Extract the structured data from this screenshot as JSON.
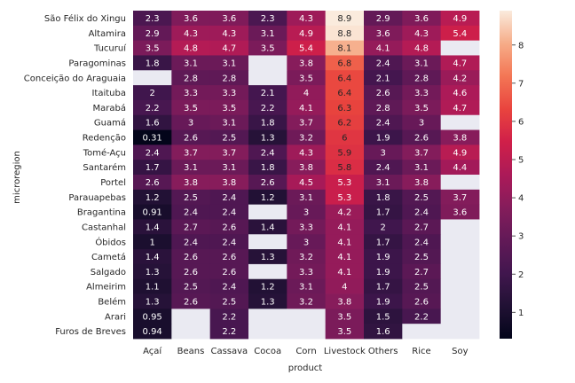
{
  "chart_data": {
    "type": "heatmap",
    "xlabel": "product",
    "ylabel": "microregion",
    "x": [
      "Açaí",
      "Beans",
      "Cassava",
      "Cocoa",
      "Corn",
      "Livestock",
      "Others",
      "Rice",
      "Soy"
    ],
    "y": [
      "São Félix do Xingu",
      "Altamira",
      "Tucuruí",
      "Paragominas",
      "Conceição do Araguaia",
      "Itaituba",
      "Marabá",
      "Guamá",
      "Redenção",
      "Tomé-Açu",
      "Santarém",
      "Portel",
      "Parauapebas",
      "Bragantina",
      "Castanhal",
      "Óbidos",
      "Cametá",
      "Salgado",
      "Almeirim",
      "Belém",
      "Arari",
      "Furos de Breves"
    ],
    "values": [
      [
        2.3,
        3.6,
        3.6,
        2.3,
        4.3,
        8.9,
        2.9,
        3.6,
        4.9
      ],
      [
        2.9,
        4.3,
        4.3,
        3.1,
        4.9,
        8.8,
        3.6,
        4.3,
        5.4
      ],
      [
        3.5,
        4.8,
        4.7,
        3.5,
        5.4,
        8.1,
        4.1,
        4.8,
        null
      ],
      [
        1.8,
        3.1,
        3.1,
        null,
        3.8,
        6.8,
        2.4,
        3.1,
        4.7
      ],
      [
        null,
        2.8,
        2.8,
        null,
        3.5,
        6.4,
        2.1,
        2.8,
        4.2
      ],
      [
        2,
        3.3,
        3.3,
        2.1,
        4,
        6.4,
        2.6,
        3.3,
        4.6
      ],
      [
        2.2,
        3.5,
        3.5,
        2.2,
        4.1,
        6.3,
        2.8,
        3.5,
        4.7
      ],
      [
        1.6,
        3,
        3.1,
        1.8,
        3.7,
        6.2,
        2.4,
        3,
        null
      ],
      [
        0.31,
        2.6,
        2.5,
        1.3,
        3.2,
        6,
        1.9,
        2.6,
        3.8
      ],
      [
        2.4,
        3.7,
        3.7,
        2.4,
        4.3,
        5.9,
        3,
        3.7,
        4.9
      ],
      [
        1.7,
        3.1,
        3.1,
        1.8,
        3.8,
        5.8,
        2.4,
        3.1,
        4.4
      ],
      [
        2.6,
        3.8,
        3.8,
        2.6,
        4.5,
        5.3,
        3.1,
        3.8,
        null
      ],
      [
        1.2,
        2.5,
        2.4,
        1.2,
        3.1,
        5.3,
        1.8,
        2.5,
        3.7
      ],
      [
        0.91,
        2.4,
        2.4,
        null,
        3,
        4.2,
        1.7,
        2.4,
        3.6
      ],
      [
        1.4,
        2.7,
        2.6,
        1.4,
        3.3,
        4.1,
        2,
        2.7,
        null
      ],
      [
        1,
        2.4,
        2.4,
        null,
        3,
        4.1,
        1.7,
        2.4,
        null
      ],
      [
        1.4,
        2.6,
        2.6,
        1.3,
        3.2,
        4.1,
        1.9,
        2.5,
        null
      ],
      [
        1.3,
        2.6,
        2.6,
        null,
        3.3,
        4.1,
        1.9,
        2.7,
        null
      ],
      [
        1.1,
        2.5,
        2.4,
        1.2,
        3.1,
        4,
        1.7,
        2.5,
        null
      ],
      [
        1.3,
        2.6,
        2.5,
        1.3,
        3.2,
        3.8,
        1.9,
        2.6,
        null
      ],
      [
        0.95,
        null,
        2.2,
        null,
        null,
        3.5,
        1.5,
        2.2,
        null
      ],
      [
        0.94,
        null,
        2.2,
        null,
        null,
        3.5,
        1.6,
        null,
        null
      ]
    ],
    "colorbar": {
      "range": [
        0.31,
        8.9
      ],
      "ticks": [
        1,
        2,
        3,
        4,
        5,
        6,
        7,
        8
      ],
      "colormap": "rocket"
    },
    "missing_color": "#eaeaf2",
    "grid": false
  }
}
